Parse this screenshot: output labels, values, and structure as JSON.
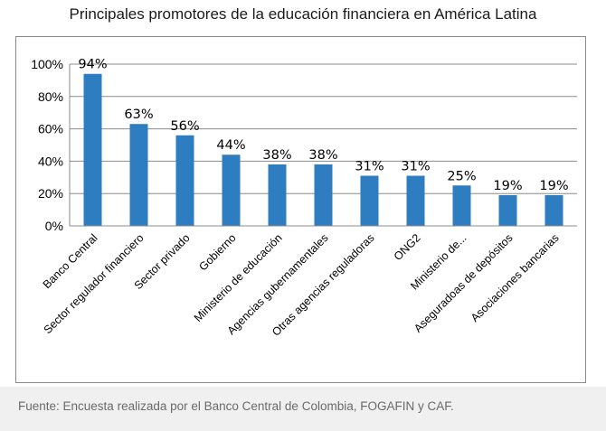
{
  "source_note": "Fuente: Encuesta realizada por el Banco Central de Colombia, FOGAFIN y CAF.",
  "chart_data": {
    "type": "bar",
    "title": "Principales promotores de la educación financiera en América Latina",
    "xlabel": "",
    "ylabel": "",
    "ylim": [
      0,
      100
    ],
    "y_ticks": [
      "0%",
      "20%",
      "40%",
      "60%",
      "80%",
      "100%"
    ],
    "grid": true,
    "bar_color": "#2E7DC1",
    "categories": [
      "Banco Central",
      "Sector regulador financiero",
      "Sector privado",
      "Gobierno",
      "Ministerio de educación",
      "Agencias gubernamentales",
      "Otras agencias reguladoras",
      "ONG2",
      "Ministerio de...",
      "Aseguradoas de depósitos",
      "Asociaciones bancarias"
    ],
    "values": [
      94,
      63,
      56,
      44,
      38,
      38,
      31,
      31,
      25,
      19,
      19
    ],
    "data_labels": [
      "94%",
      "63%",
      "56%",
      "44%",
      "38%",
      "38%",
      "31%",
      "31%",
      "25%",
      "19%",
      "19%"
    ]
  }
}
